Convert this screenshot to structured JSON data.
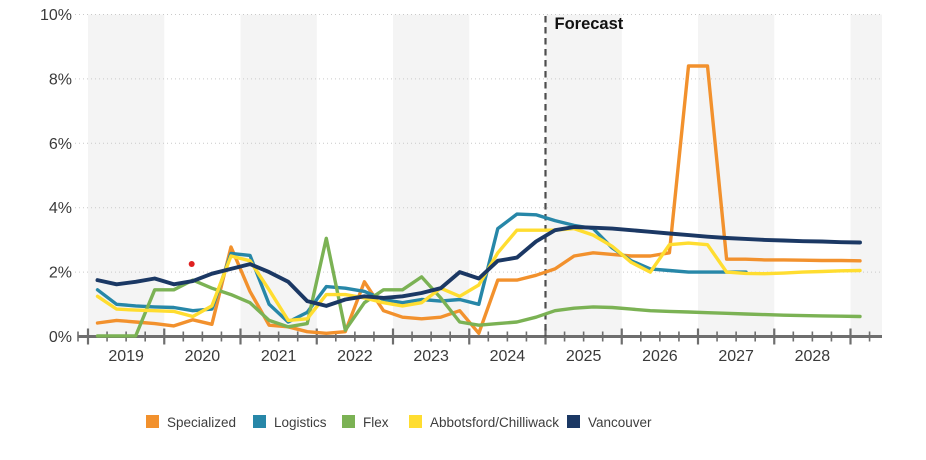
{
  "chart_data": {
    "type": "line",
    "title": "",
    "xlabel": "",
    "ylabel": "",
    "ylim": [
      0,
      10
    ],
    "y_ticks": [
      {
        "value": 0,
        "label": "0%"
      },
      {
        "value": 2,
        "label": "2%"
      },
      {
        "value": 4,
        "label": "4%"
      },
      {
        "value": 6,
        "label": "6%"
      },
      {
        "value": 8,
        "label": "8%"
      },
      {
        "value": 10,
        "label": "10%"
      }
    ],
    "x_unit": "quarter",
    "x_years": [
      2019,
      2020,
      2021,
      2022,
      2023,
      2024,
      2025,
      2026,
      2027,
      2028
    ],
    "x_axis_start_year": 2019,
    "x_axis_end_year": 2029,
    "shaded_band_years": [
      2019,
      2021,
      2023,
      2025,
      2027,
      2029
    ],
    "forecast": {
      "label": "Forecast",
      "x_year": 2025.0
    },
    "red_dot": {
      "x_year": 2020.36,
      "value": 2.25,
      "color": "#DF2020"
    },
    "grid": "dotted-horizontal",
    "legend_position": "bottom",
    "series": [
      {
        "name": "Specialized",
        "color": "#F2912D",
        "values": [
          0.42,
          0.5,
          0.45,
          0.4,
          0.33,
          0.52,
          0.38,
          2.78,
          1.4,
          0.35,
          0.3,
          0.15,
          0.1,
          0.15,
          1.7,
          0.8,
          0.6,
          0.55,
          0.6,
          0.8,
          0.1,
          1.75,
          1.75,
          1.9,
          2.1,
          2.5,
          2.6,
          2.55,
          2.5,
          2.5,
          2.6,
          8.4,
          8.4,
          2.4,
          2.4,
          2.38,
          2.38,
          2.37,
          2.36,
          2.36,
          2.35
        ]
      },
      {
        "name": "Logistics",
        "color": "#2787A8",
        "line_end_year": 2027.63,
        "values": [
          1.45,
          1.0,
          0.95,
          0.92,
          0.9,
          0.8,
          0.85,
          2.58,
          2.52,
          1.0,
          0.45,
          0.75,
          1.55,
          1.5,
          1.4,
          1.15,
          1.05,
          1.15,
          1.1,
          1.15,
          1.0,
          3.35,
          3.8,
          3.78,
          3.6,
          3.45,
          3.35,
          2.75,
          2.35,
          2.1,
          2.05,
          2.0,
          2.0,
          2.0
        ]
      },
      {
        "name": "Flex",
        "color": "#7BB254",
        "values": [
          0.02,
          0.02,
          0.02,
          1.45,
          1.45,
          1.75,
          1.5,
          1.3,
          1.05,
          0.5,
          0.3,
          0.4,
          3.05,
          0.2,
          1.05,
          1.45,
          1.45,
          1.85,
          1.2,
          0.45,
          0.35,
          0.4,
          0.45,
          0.6,
          0.8,
          0.88,
          0.92,
          0.9,
          0.85,
          0.8,
          0.78,
          0.76,
          0.74,
          0.72,
          0.7,
          0.68,
          0.66,
          0.65,
          0.64,
          0.63,
          0.62
        ]
      },
      {
        "name": "Abbotsford/Chilliwack",
        "color": "#FFDD30",
        "values": [
          1.25,
          0.85,
          0.82,
          0.8,
          0.78,
          0.62,
          0.95,
          2.5,
          2.35,
          1.45,
          0.5,
          0.55,
          1.3,
          1.3,
          1.2,
          1.05,
          0.95,
          1.05,
          1.5,
          1.25,
          1.6,
          2.6,
          3.3,
          3.3,
          3.3,
          3.35,
          3.15,
          2.8,
          2.3,
          2.0,
          2.85,
          2.9,
          2.85,
          2.0,
          1.96,
          1.95,
          1.97,
          2.0,
          2.02,
          2.04,
          2.05
        ]
      },
      {
        "name": "Vancouver",
        "color": "#1B3864",
        "values": [
          1.75,
          1.62,
          1.7,
          1.8,
          1.62,
          1.72,
          1.95,
          2.1,
          2.25,
          2.0,
          1.7,
          1.1,
          0.95,
          1.15,
          1.25,
          1.2,
          1.25,
          1.35,
          1.5,
          2.0,
          1.8,
          2.35,
          2.45,
          2.95,
          3.3,
          3.4,
          3.38,
          3.35,
          3.3,
          3.25,
          3.2,
          3.15,
          3.1,
          3.06,
          3.03,
          3.0,
          2.98,
          2.96,
          2.95,
          2.93,
          2.92
        ]
      }
    ]
  },
  "colors": {
    "band_gray": "#F4F4F4",
    "gridline": "#C9C9C9",
    "axis": "#6E6E6E",
    "forecast_line": "#4D4D4D",
    "background": "#FFFFFF"
  }
}
